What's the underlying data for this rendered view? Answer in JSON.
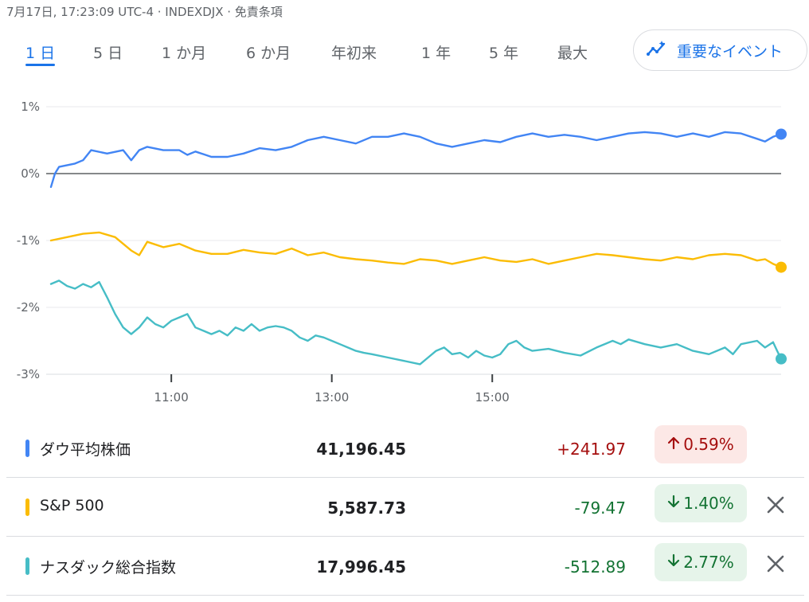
{
  "header": {
    "text": "7月17日, 17:23:09 UTC-4 · INDEXDJX · 免責条項"
  },
  "tabs": [
    {
      "label": "1 日",
      "active": true
    },
    {
      "label": "5 日",
      "active": false
    },
    {
      "label": "1 か月",
      "active": false
    },
    {
      "label": "6 か月",
      "active": false
    },
    {
      "label": "年初来",
      "active": false
    },
    {
      "label": "1 年",
      "active": false
    },
    {
      "label": "5 年",
      "active": false
    },
    {
      "label": "最大",
      "active": false
    }
  ],
  "events_button": {
    "label": "重要なイベント",
    "icon": "sparkle-trend-icon"
  },
  "chart_data": {
    "type": "line",
    "x_range": [
      "9:30",
      "16:00"
    ],
    "x_ticks": [
      {
        "label": "11:00",
        "t": 1.5
      },
      {
        "label": "13:00",
        "t": 3.5
      },
      {
        "label": "15:00",
        "t": 5.5
      }
    ],
    "y_ticks": [
      {
        "label": "1%",
        "v": 1
      },
      {
        "label": "0%",
        "v": 0
      },
      {
        "label": "-1%",
        "v": -1
      },
      {
        "label": "-2%",
        "v": -2
      },
      {
        "label": "-3%",
        "v": -3
      }
    ],
    "ylim": [
      -3,
      1
    ],
    "baseline": 0,
    "grid": true,
    "series": [
      {
        "name": "ダウ平均株価",
        "color": "#4285f4",
        "points": [
          [
            0.0,
            -0.2
          ],
          [
            0.05,
            0.0
          ],
          [
            0.1,
            0.1
          ],
          [
            0.3,
            0.15
          ],
          [
            0.4,
            0.2
          ],
          [
            0.5,
            0.35
          ],
          [
            0.7,
            0.3
          ],
          [
            0.9,
            0.35
          ],
          [
            1.0,
            0.2
          ],
          [
            1.1,
            0.35
          ],
          [
            1.2,
            0.4
          ],
          [
            1.4,
            0.35
          ],
          [
            1.6,
            0.35
          ],
          [
            1.7,
            0.28
          ],
          [
            1.8,
            0.33
          ],
          [
            2.0,
            0.25
          ],
          [
            2.2,
            0.25
          ],
          [
            2.4,
            0.3
          ],
          [
            2.6,
            0.38
          ],
          [
            2.8,
            0.35
          ],
          [
            3.0,
            0.4
          ],
          [
            3.2,
            0.5
          ],
          [
            3.4,
            0.55
          ],
          [
            3.6,
            0.5
          ],
          [
            3.8,
            0.45
          ],
          [
            4.0,
            0.55
          ],
          [
            4.2,
            0.55
          ],
          [
            4.4,
            0.6
          ],
          [
            4.6,
            0.55
          ],
          [
            4.8,
            0.45
          ],
          [
            5.0,
            0.4
          ],
          [
            5.2,
            0.45
          ],
          [
            5.4,
            0.5
          ],
          [
            5.6,
            0.47
          ],
          [
            5.8,
            0.55
          ],
          [
            6.0,
            0.6
          ],
          [
            6.2,
            0.55
          ],
          [
            6.4,
            0.58
          ],
          [
            6.6,
            0.55
          ],
          [
            6.8,
            0.5
          ],
          [
            7.0,
            0.55
          ],
          [
            7.2,
            0.6
          ],
          [
            7.4,
            0.62
          ],
          [
            7.6,
            0.6
          ],
          [
            7.8,
            0.55
          ],
          [
            8.0,
            0.6
          ],
          [
            8.2,
            0.55
          ],
          [
            8.4,
            0.62
          ],
          [
            8.6,
            0.6
          ],
          [
            8.8,
            0.52
          ],
          [
            8.9,
            0.48
          ],
          [
            9.0,
            0.55
          ],
          [
            9.1,
            0.59
          ]
        ],
        "end_value": 0.59
      },
      {
        "name": "S&P 500",
        "color": "#fbbc04",
        "points": [
          [
            0.0,
            -1.0
          ],
          [
            0.2,
            -0.95
          ],
          [
            0.4,
            -0.9
          ],
          [
            0.6,
            -0.88
          ],
          [
            0.8,
            -0.95
          ],
          [
            1.0,
            -1.15
          ],
          [
            1.1,
            -1.22
          ],
          [
            1.2,
            -1.02
          ],
          [
            1.4,
            -1.1
          ],
          [
            1.6,
            -1.05
          ],
          [
            1.7,
            -1.1
          ],
          [
            1.8,
            -1.15
          ],
          [
            2.0,
            -1.2
          ],
          [
            2.2,
            -1.2
          ],
          [
            2.4,
            -1.14
          ],
          [
            2.6,
            -1.18
          ],
          [
            2.8,
            -1.2
          ],
          [
            3.0,
            -1.12
          ],
          [
            3.2,
            -1.22
          ],
          [
            3.4,
            -1.18
          ],
          [
            3.6,
            -1.25
          ],
          [
            3.8,
            -1.28
          ],
          [
            4.0,
            -1.3
          ],
          [
            4.2,
            -1.33
          ],
          [
            4.4,
            -1.35
          ],
          [
            4.6,
            -1.28
          ],
          [
            4.8,
            -1.3
          ],
          [
            5.0,
            -1.35
          ],
          [
            5.2,
            -1.3
          ],
          [
            5.4,
            -1.25
          ],
          [
            5.6,
            -1.3
          ],
          [
            5.8,
            -1.32
          ],
          [
            6.0,
            -1.28
          ],
          [
            6.2,
            -1.35
          ],
          [
            6.4,
            -1.3
          ],
          [
            6.6,
            -1.25
          ],
          [
            6.8,
            -1.2
          ],
          [
            7.0,
            -1.22
          ],
          [
            7.2,
            -1.25
          ],
          [
            7.4,
            -1.28
          ],
          [
            7.6,
            -1.3
          ],
          [
            7.8,
            -1.25
          ],
          [
            8.0,
            -1.28
          ],
          [
            8.2,
            -1.22
          ],
          [
            8.4,
            -1.2
          ],
          [
            8.6,
            -1.22
          ],
          [
            8.8,
            -1.3
          ],
          [
            8.9,
            -1.28
          ],
          [
            9.0,
            -1.35
          ],
          [
            9.1,
            -1.4
          ]
        ],
        "end_value": -1.4
      },
      {
        "name": "ナスダック総合指数",
        "color": "#46bdc6",
        "points": [
          [
            0.0,
            -1.65
          ],
          [
            0.1,
            -1.6
          ],
          [
            0.2,
            -1.68
          ],
          [
            0.3,
            -1.72
          ],
          [
            0.4,
            -1.65
          ],
          [
            0.5,
            -1.7
          ],
          [
            0.6,
            -1.62
          ],
          [
            0.7,
            -1.85
          ],
          [
            0.8,
            -2.1
          ],
          [
            0.9,
            -2.3
          ],
          [
            1.0,
            -2.4
          ],
          [
            1.1,
            -2.3
          ],
          [
            1.2,
            -2.15
          ],
          [
            1.3,
            -2.25
          ],
          [
            1.4,
            -2.3
          ],
          [
            1.5,
            -2.2
          ],
          [
            1.6,
            -2.15
          ],
          [
            1.7,
            -2.1
          ],
          [
            1.8,
            -2.3
          ],
          [
            1.9,
            -2.35
          ],
          [
            2.0,
            -2.4
          ],
          [
            2.1,
            -2.35
          ],
          [
            2.2,
            -2.42
          ],
          [
            2.3,
            -2.3
          ],
          [
            2.4,
            -2.35
          ],
          [
            2.5,
            -2.25
          ],
          [
            2.6,
            -2.35
          ],
          [
            2.7,
            -2.3
          ],
          [
            2.8,
            -2.28
          ],
          [
            2.9,
            -2.3
          ],
          [
            3.0,
            -2.35
          ],
          [
            3.1,
            -2.45
          ],
          [
            3.2,
            -2.5
          ],
          [
            3.3,
            -2.42
          ],
          [
            3.4,
            -2.45
          ],
          [
            3.5,
            -2.5
          ],
          [
            3.6,
            -2.55
          ],
          [
            3.7,
            -2.6
          ],
          [
            3.8,
            -2.65
          ],
          [
            3.9,
            -2.68
          ],
          [
            4.0,
            -2.7
          ],
          [
            4.2,
            -2.75
          ],
          [
            4.4,
            -2.8
          ],
          [
            4.6,
            -2.85
          ],
          [
            4.7,
            -2.75
          ],
          [
            4.8,
            -2.65
          ],
          [
            4.9,
            -2.6
          ],
          [
            5.0,
            -2.7
          ],
          [
            5.1,
            -2.68
          ],
          [
            5.2,
            -2.75
          ],
          [
            5.3,
            -2.65
          ],
          [
            5.4,
            -2.72
          ],
          [
            5.5,
            -2.75
          ],
          [
            5.6,
            -2.7
          ],
          [
            5.7,
            -2.55
          ],
          [
            5.8,
            -2.5
          ],
          [
            5.9,
            -2.6
          ],
          [
            6.0,
            -2.65
          ],
          [
            6.2,
            -2.62
          ],
          [
            6.4,
            -2.68
          ],
          [
            6.6,
            -2.72
          ],
          [
            6.8,
            -2.6
          ],
          [
            7.0,
            -2.5
          ],
          [
            7.1,
            -2.55
          ],
          [
            7.2,
            -2.48
          ],
          [
            7.4,
            -2.55
          ],
          [
            7.6,
            -2.6
          ],
          [
            7.8,
            -2.55
          ],
          [
            8.0,
            -2.65
          ],
          [
            8.2,
            -2.7
          ],
          [
            8.4,
            -2.6
          ],
          [
            8.5,
            -2.7
          ],
          [
            8.6,
            -2.55
          ],
          [
            8.8,
            -2.5
          ],
          [
            8.9,
            -2.6
          ],
          [
            9.0,
            -2.52
          ],
          [
            9.05,
            -2.65
          ],
          [
            9.1,
            -2.77
          ]
        ],
        "end_value": -2.77
      }
    ]
  },
  "rows": [
    {
      "name": "ダウ平均株価",
      "value": "41,196.45",
      "change": "+241.97",
      "pct": "0.59%",
      "direction": "up",
      "color": "#4285f4",
      "closable": false
    },
    {
      "name": "S&P 500",
      "value": "5,587.73",
      "change": "-79.47",
      "pct": "1.40%",
      "direction": "down",
      "color": "#fbbc04",
      "closable": true
    },
    {
      "name": "ナスダック総合指数",
      "value": "17,996.45",
      "change": "-512.89",
      "pct": "2.77%",
      "direction": "down",
      "color": "#46bdc6",
      "closable": true
    }
  ],
  "colors": {
    "accent": "#1a73e8",
    "up_text": "#a50e0e",
    "up_bg": "#fce8e6",
    "down_text": "#137333",
    "down_bg": "#e6f4ea"
  }
}
